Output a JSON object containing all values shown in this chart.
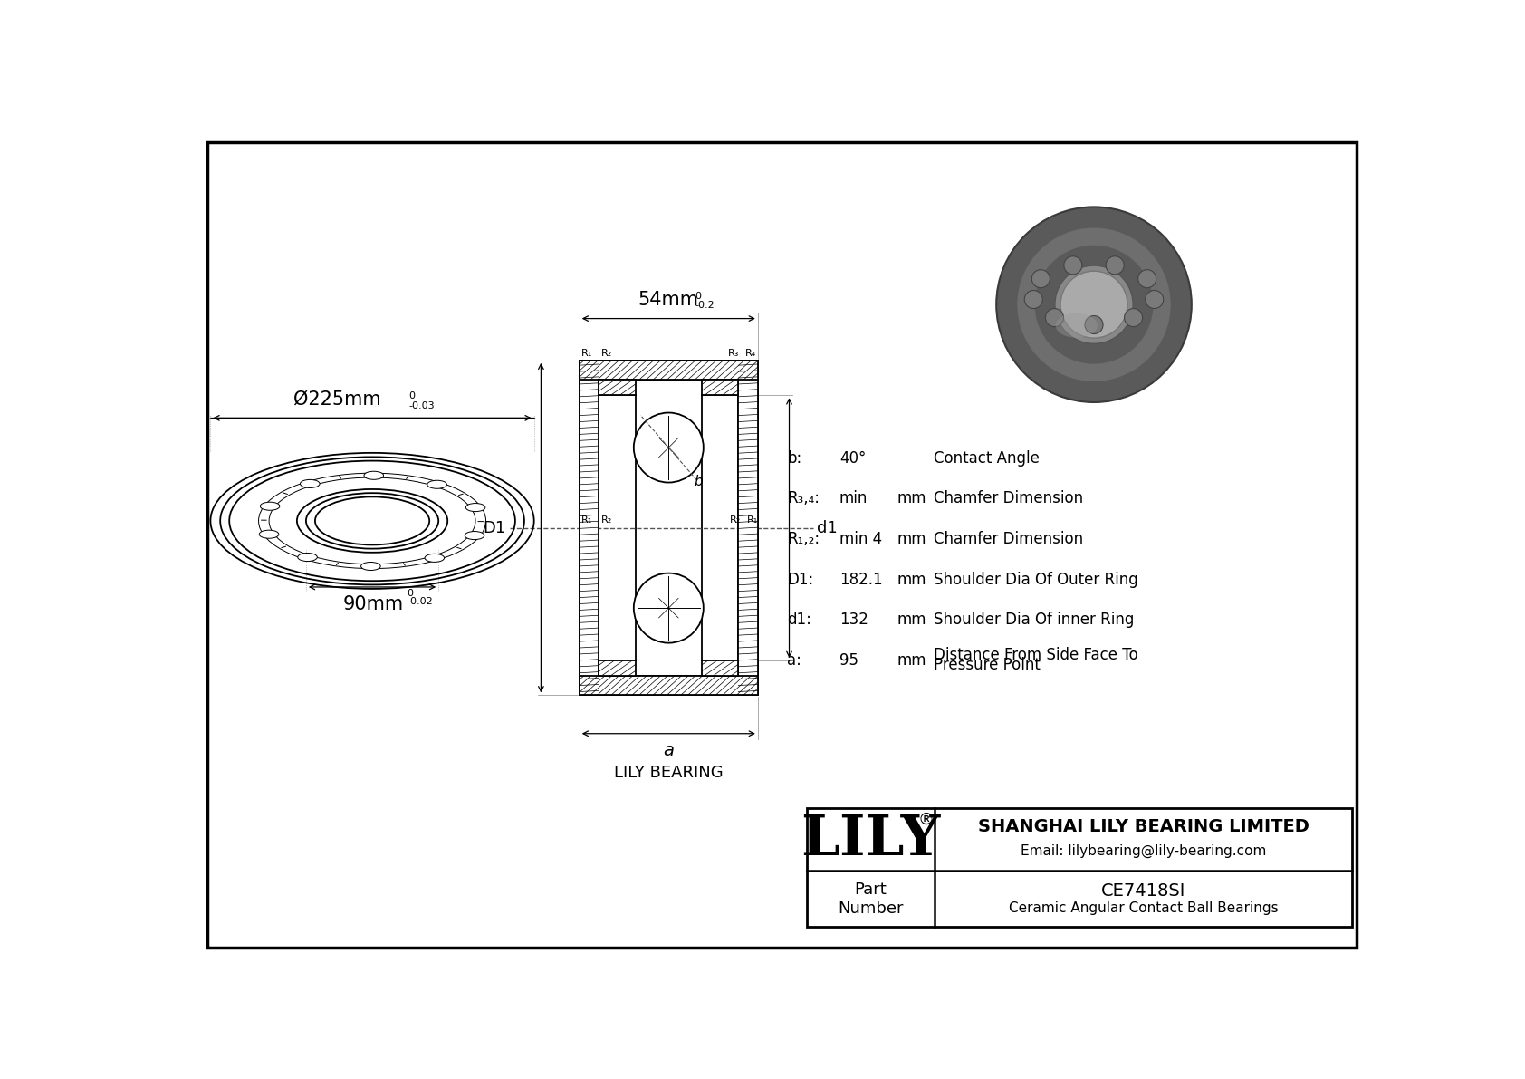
{
  "bg_color": "#ffffff",
  "line_color": "#000000",
  "dim_outer": "Ø225mm",
  "dim_outer_tol_top": "0",
  "dim_outer_tol_bot": "-0.03",
  "dim_width": "54mm",
  "dim_width_tol_top": "0",
  "dim_width_tol_bot": "-0.2",
  "dim_bore": "90mm",
  "dim_bore_tol_top": "0",
  "dim_bore_tol_bot": "-0.02",
  "specs": [
    {
      "label": "b:",
      "value": "40°",
      "unit": "",
      "desc": "Contact Angle"
    },
    {
      "label": "R₃,₄:",
      "value": "min",
      "unit": "mm",
      "desc": "Chamfer Dimension"
    },
    {
      "label": "R₁,₂:",
      "value": "min 4",
      "unit": "mm",
      "desc": "Chamfer Dimension"
    },
    {
      "label": "D1:",
      "value": "182.1",
      "unit": "mm",
      "desc": "Shoulder Dia Of Outer Ring"
    },
    {
      "label": "d1:",
      "value": "132",
      "unit": "mm",
      "desc": "Shoulder Dia Of inner Ring"
    },
    {
      "label": "a:",
      "value": "95",
      "unit": "mm",
      "desc": "Distance From Side Face To\nPressure Point"
    }
  ],
  "company": "SHANGHAI LILY BEARING LIMITED",
  "email": "Email: lilybearing@lily-bearing.com",
  "part_label": "Part\nNumber",
  "part_number": "CE7418SI",
  "part_desc": "Ceramic Angular Contact Ball Bearings",
  "brand": "LILY",
  "brand_reg": "®",
  "lily_bearing_label": "LILY BEARING",
  "label_a": "a",
  "label_D1": "D1",
  "label_d1": "d1"
}
